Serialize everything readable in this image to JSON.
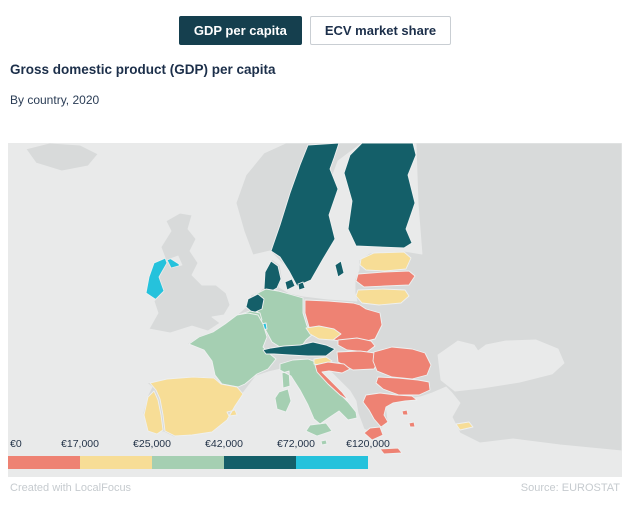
{
  "tabs": [
    {
      "label": "GDP per capita",
      "active": true
    },
    {
      "label": "ECV market share",
      "active": false
    }
  ],
  "header": {
    "title": "Gross domestic product (GDP) per capita",
    "subtitle": "By country, 2020"
  },
  "legend": {
    "labels": [
      "€0",
      "€17,000",
      "€25,000",
      "€42,000",
      "€72,000",
      "€120,000"
    ],
    "band_order": [
      "0-17",
      "17-25",
      "25-42",
      "42-72",
      "72-120"
    ]
  },
  "footer": {
    "left": "Created with LocalFocus",
    "right": "Source: EUROSTAT"
  },
  "map": {
    "sea_color": "#e9eaea",
    "non_eu_color": "#d8dada",
    "band_colors": {
      "0-17": "#ee8273",
      "17-25": "#f7dd96",
      "25-42": "#a5cfb2",
      "42-72": "#145f69",
      "72-120": "#25c2dc"
    },
    "non_eu_regions": [
      "Iceland",
      "Norway",
      "Other non-EU land",
      "United Kingdom"
    ],
    "countries": [
      {
        "name": "Sweden",
        "band": "42-72"
      },
      {
        "name": "Finland",
        "band": "42-72"
      },
      {
        "name": "Denmark",
        "band": "42-72"
      },
      {
        "name": "Estonia",
        "band": "17-25"
      },
      {
        "name": "Latvia",
        "band": "0-17"
      },
      {
        "name": "Lithuania",
        "band": "17-25"
      },
      {
        "name": "Poland",
        "band": "0-17"
      },
      {
        "name": "Germany",
        "band": "25-42"
      },
      {
        "name": "Netherlands",
        "band": "42-72"
      },
      {
        "name": "Belgium",
        "band": "25-42"
      },
      {
        "name": "Luxembourg",
        "band": "72-120"
      },
      {
        "name": "France",
        "band": "25-42"
      },
      {
        "name": "Portugal",
        "band": "17-25"
      },
      {
        "name": "Spain",
        "band": "17-25"
      },
      {
        "name": "Czechia",
        "band": "17-25"
      },
      {
        "name": "Slovakia",
        "band": "0-17"
      },
      {
        "name": "Hungary",
        "band": "0-17"
      },
      {
        "name": "Austria",
        "band": "42-72"
      },
      {
        "name": "Italy",
        "band": "25-42"
      },
      {
        "name": "Slovenia",
        "band": "17-25"
      },
      {
        "name": "Croatia",
        "band": "0-17"
      },
      {
        "name": "Romania",
        "band": "0-17"
      },
      {
        "name": "Bulgaria",
        "band": "0-17"
      },
      {
        "name": "Greece",
        "band": "0-17"
      },
      {
        "name": "Malta",
        "band": "25-42"
      },
      {
        "name": "Ireland",
        "band": "72-120"
      },
      {
        "name": "Cyprus",
        "band": "17-25"
      }
    ]
  },
  "chart_data": {
    "type": "heatmap",
    "subtype": "choropleth-map-of-europe",
    "title": "Gross domestic product (GDP) per capita",
    "subtitle": "By country, 2020",
    "legend_thresholds": [
      "€0",
      "€17,000",
      "€25,000",
      "€42,000",
      "€72,000",
      "€120,000"
    ],
    "bands": [
      {
        "range": "€0–17,000",
        "color": "#ee8273",
        "countries": [
          "Poland",
          "Latvia",
          "Slovakia",
          "Hungary",
          "Croatia",
          "Romania",
          "Bulgaria",
          "Greece"
        ]
      },
      {
        "range": "€17,000–25,000",
        "color": "#f7dd96",
        "countries": [
          "Portugal",
          "Spain",
          "Estonia",
          "Lithuania",
          "Czechia",
          "Slovenia",
          "Cyprus"
        ]
      },
      {
        "range": "€25,000–42,000",
        "color": "#a5cfb2",
        "countries": [
          "France",
          "Germany",
          "Belgium",
          "Italy",
          "Malta"
        ]
      },
      {
        "range": "€42,000–72,000",
        "color": "#145f69",
        "countries": [
          "Sweden",
          "Finland",
          "Denmark",
          "Netherlands",
          "Austria"
        ]
      },
      {
        "range": "€72,000–120,000",
        "color": "#25c2dc",
        "countries": [
          "Ireland",
          "Luxembourg"
        ]
      }
    ],
    "non_data_regions_color": "#d8dada",
    "source": "EUROSTAT"
  }
}
